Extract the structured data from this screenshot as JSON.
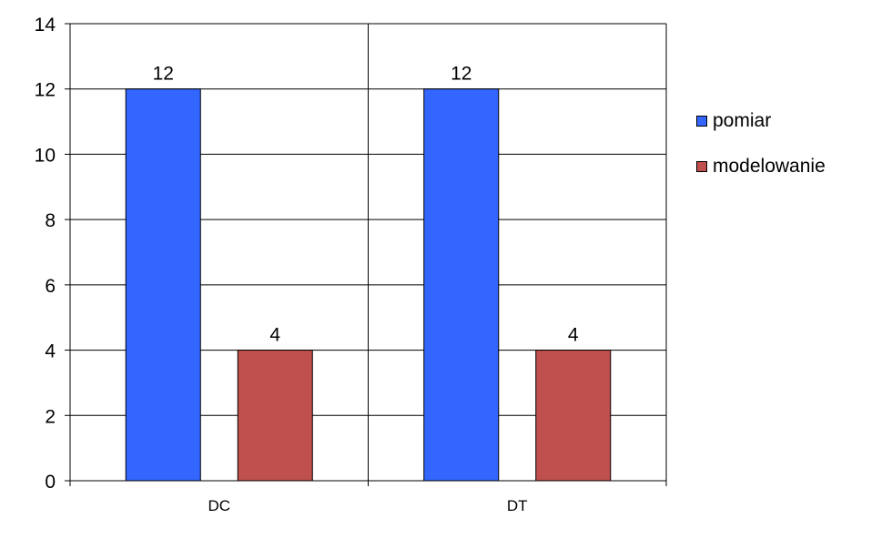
{
  "chart_data": {
    "type": "bar",
    "title": "",
    "xlabel": "",
    "ylabel": "",
    "categories": [
      "DC",
      "DT"
    ],
    "series": [
      {
        "name": "pomiar",
        "values": [
          12,
          12
        ],
        "color": "#3366FF"
      },
      {
        "name": "modelowanie",
        "values": [
          4,
          4
        ],
        "color": "#C0504D"
      }
    ],
    "ylim": [
      0,
      14
    ],
    "yticks": [
      0,
      2,
      4,
      6,
      8,
      10,
      12,
      14
    ],
    "grid": true,
    "data_labels": true,
    "legend_position": "right"
  }
}
